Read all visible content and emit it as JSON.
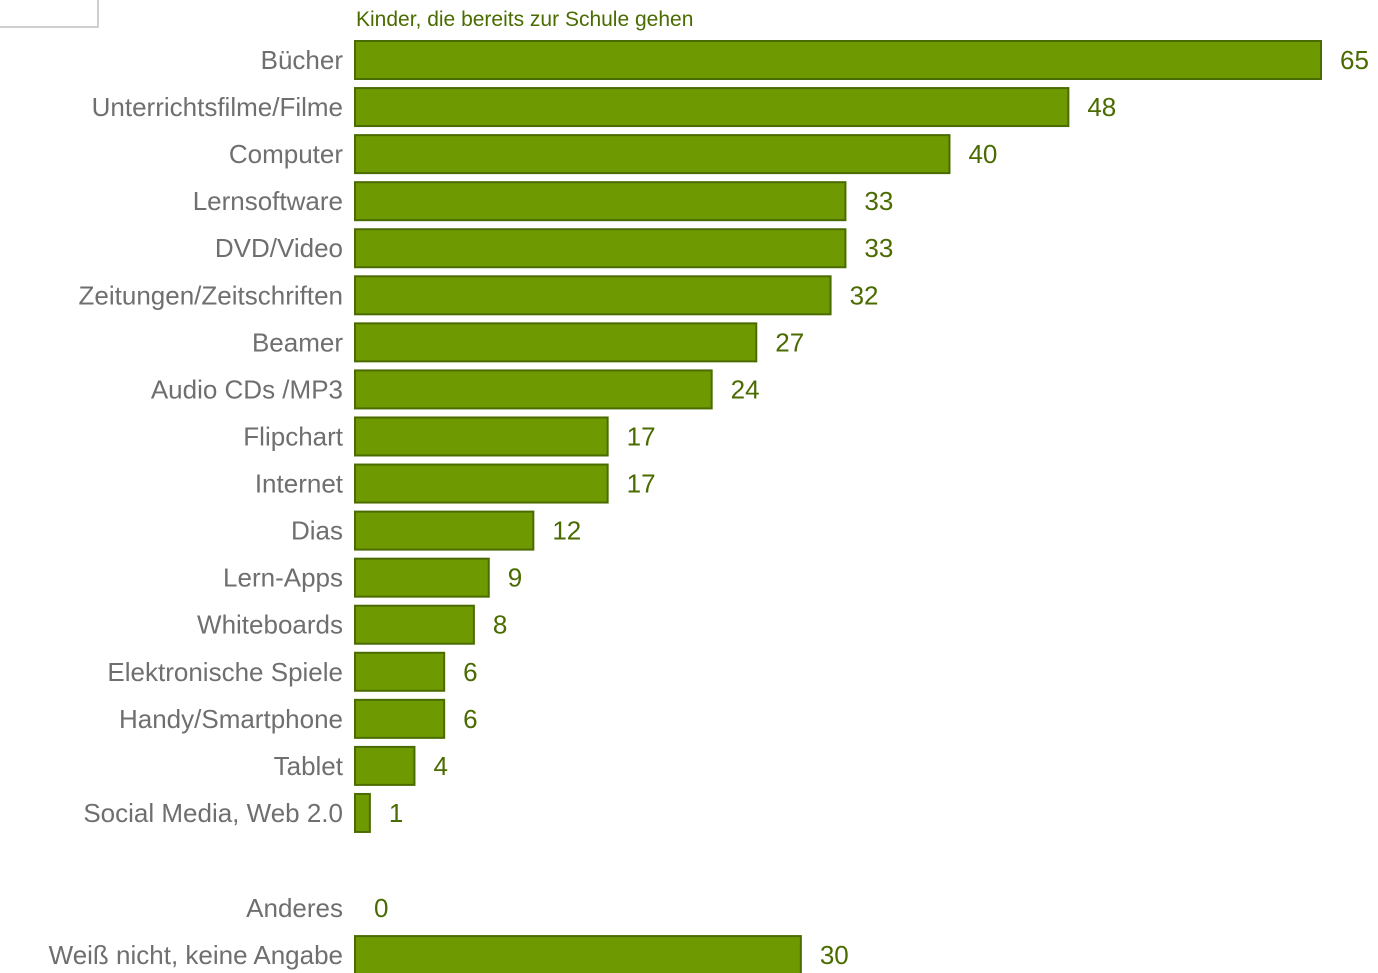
{
  "chart_data": {
    "type": "bar",
    "orientation": "horizontal",
    "legend": "Kinder, die bereits zur Schule gehen",
    "legend_placement": "top",
    "categories": [
      "Bücher",
      "Unterrichtsfilme/Filme",
      "Computer",
      "Lernsoftware",
      "DVD/Video",
      "Zeitungen/Zeitschriften",
      "Beamer",
      "Audio CDs /MP3",
      "Flipchart",
      "Internet",
      "Dias",
      "Lern-Apps",
      "Whiteboards",
      "Elektronische Spiele",
      "Handy/Smartphone",
      "Tablet",
      "Social Media, Web 2.0",
      "Anderes",
      "Weiß nicht, keine Angabe"
    ],
    "values": [
      65,
      48,
      40,
      33,
      33,
      32,
      27,
      24,
      17,
      17,
      12,
      9,
      8,
      6,
      6,
      4,
      1,
      0,
      30
    ],
    "xlim": [
      0,
      65
    ],
    "grid": false,
    "colors": {
      "bar_fill": "#6f9900",
      "bar_stroke": "#4a6b00",
      "value_text": "#4a6b00",
      "category_text": "#6f6f6f"
    }
  }
}
